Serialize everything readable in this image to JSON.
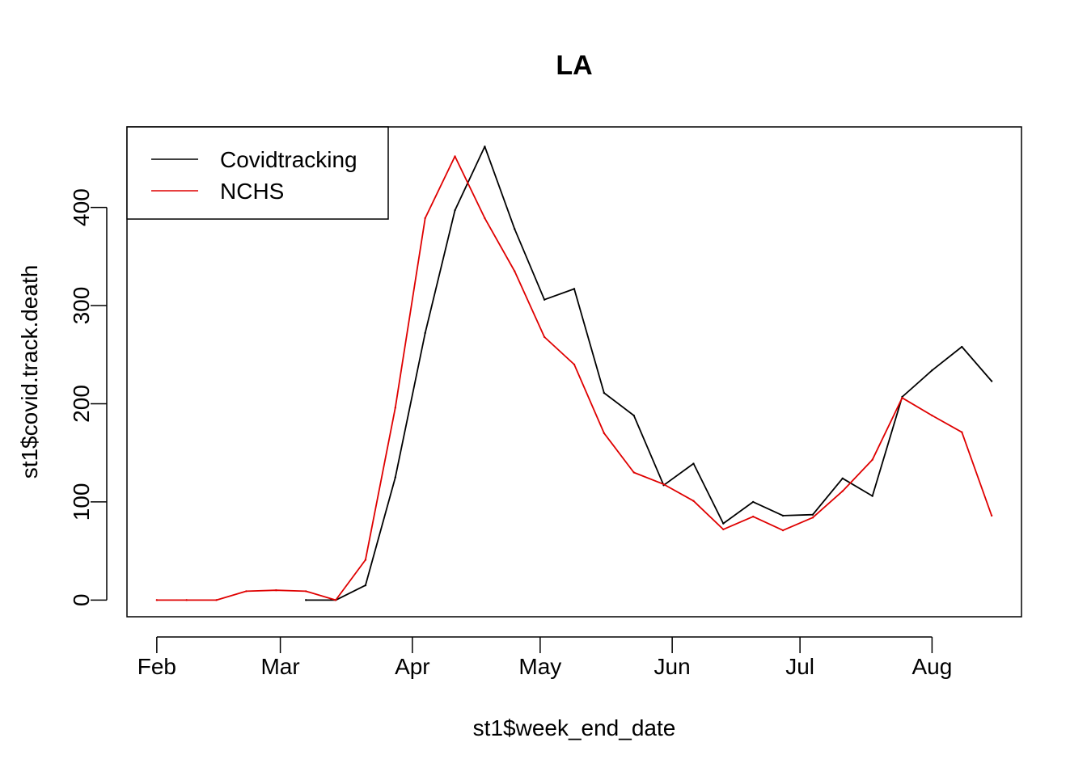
{
  "chart_data": {
    "type": "line",
    "title": "LA",
    "xlabel": "st1$week_end_date",
    "ylabel": "st1$covid.track.death",
    "x_axis": {
      "type": "date",
      "range": [
        "2020-01-25",
        "2020-08-22"
      ],
      "ticks": [
        {
          "date": "2020-02-01",
          "label": "Feb"
        },
        {
          "date": "2020-03-01",
          "label": "Mar"
        },
        {
          "date": "2020-04-01",
          "label": "Apr"
        },
        {
          "date": "2020-05-01",
          "label": "May"
        },
        {
          "date": "2020-06-01",
          "label": "Jun"
        },
        {
          "date": "2020-07-01",
          "label": "Jul"
        },
        {
          "date": "2020-08-01",
          "label": "Aug"
        }
      ]
    },
    "y_axis": {
      "range": [
        -17,
        482
      ],
      "ticks": [
        0,
        100,
        200,
        300,
        400
      ]
    },
    "grid": false,
    "legend": {
      "placement": "top-left",
      "boxed": true
    },
    "series": [
      {
        "name": "Covidtracking",
        "color": "#000000",
        "points": [
          {
            "x": "2020-03-07",
            "y": 0
          },
          {
            "x": "2020-03-14",
            "y": 0
          },
          {
            "x": "2020-03-21",
            "y": 15
          },
          {
            "x": "2020-03-28",
            "y": 125
          },
          {
            "x": "2020-04-04",
            "y": 272
          },
          {
            "x": "2020-04-11",
            "y": 397
          },
          {
            "x": "2020-04-18",
            "y": 462
          },
          {
            "x": "2020-04-25",
            "y": 378
          },
          {
            "x": "2020-05-02",
            "y": 306
          },
          {
            "x": "2020-05-09",
            "y": 317
          },
          {
            "x": "2020-05-16",
            "y": 211
          },
          {
            "x": "2020-05-23",
            "y": 188
          },
          {
            "x": "2020-05-30",
            "y": 117
          },
          {
            "x": "2020-06-06",
            "y": 139
          },
          {
            "x": "2020-06-13",
            "y": 78
          },
          {
            "x": "2020-06-20",
            "y": 100
          },
          {
            "x": "2020-06-27",
            "y": 86
          },
          {
            "x": "2020-07-04",
            "y": 87
          },
          {
            "x": "2020-07-11",
            "y": 124
          },
          {
            "x": "2020-07-18",
            "y": 106
          },
          {
            "x": "2020-07-25",
            "y": 207
          },
          {
            "x": "2020-08-01",
            "y": 234
          },
          {
            "x": "2020-08-08",
            "y": 258
          },
          {
            "x": "2020-08-15",
            "y": 223
          }
        ]
      },
      {
        "name": "NCHS",
        "color": "#df0000",
        "points": [
          {
            "x": "2020-02-01",
            "y": 0
          },
          {
            "x": "2020-02-08",
            "y": 0
          },
          {
            "x": "2020-02-15",
            "y": 0
          },
          {
            "x": "2020-02-22",
            "y": 9
          },
          {
            "x": "2020-02-29",
            "y": 10
          },
          {
            "x": "2020-03-07",
            "y": 9
          },
          {
            "x": "2020-03-14",
            "y": 0
          },
          {
            "x": "2020-03-21",
            "y": 41
          },
          {
            "x": "2020-03-28",
            "y": 196
          },
          {
            "x": "2020-04-04",
            "y": 389
          },
          {
            "x": "2020-04-11",
            "y": 452
          },
          {
            "x": "2020-04-18",
            "y": 389
          },
          {
            "x": "2020-04-25",
            "y": 335
          },
          {
            "x": "2020-05-02",
            "y": 268
          },
          {
            "x": "2020-05-09",
            "y": 240
          },
          {
            "x": "2020-05-16",
            "y": 170
          },
          {
            "x": "2020-05-23",
            "y": 130
          },
          {
            "x": "2020-05-30",
            "y": 118
          },
          {
            "x": "2020-06-06",
            "y": 101
          },
          {
            "x": "2020-06-13",
            "y": 72
          },
          {
            "x": "2020-06-20",
            "y": 85
          },
          {
            "x": "2020-06-27",
            "y": 71
          },
          {
            "x": "2020-07-04",
            "y": 84
          },
          {
            "x": "2020-07-11",
            "y": 111
          },
          {
            "x": "2020-07-18",
            "y": 143
          },
          {
            "x": "2020-07-25",
            "y": 206
          },
          {
            "x": "2020-08-01",
            "y": 188
          },
          {
            "x": "2020-08-08",
            "y": 171
          },
          {
            "x": "2020-08-15",
            "y": 86
          }
        ]
      }
    ]
  }
}
